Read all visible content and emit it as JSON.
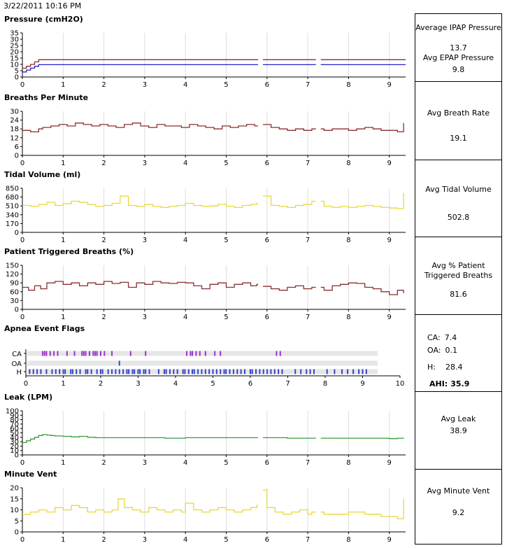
{
  "timestamp": "3/22/2011 10:16 PM",
  "chart_data": [
    {
      "type": "line",
      "title": "Pressure (cmH2O)",
      "xlabel": "",
      "ylabel": "",
      "xlim": [
        0,
        9.4
      ],
      "ylim": [
        0,
        35
      ],
      "xticks": [
        0,
        1,
        2,
        3,
        4,
        5,
        6,
        7,
        8,
        9
      ],
      "yticks": [
        0,
        5,
        10,
        15,
        20,
        25,
        30,
        35
      ],
      "gaps": [
        [
          5.78,
          5.9
        ],
        [
          7.2,
          7.32
        ]
      ],
      "series": [
        {
          "color": "#8b2e2e",
          "x": [
            0,
            0.1,
            0.2,
            0.3,
            0.4,
            9.4
          ],
          "y": [
            7,
            8.5,
            10,
            12,
            13.7,
            13.7
          ]
        },
        {
          "color": "#2222cc",
          "x": [
            0,
            0.1,
            0.2,
            0.3,
            0.4,
            9.4
          ],
          "y": [
            4,
            5.5,
            7,
            8.5,
            9.8,
            9.8
          ]
        }
      ]
    },
    {
      "type": "line",
      "title": "Breaths Per Minute",
      "xlabel": "",
      "ylabel": "",
      "xlim": [
        0,
        9.4
      ],
      "ylim": [
        0,
        30
      ],
      "xticks": [
        0,
        1,
        2,
        3,
        4,
        5,
        6,
        7,
        8,
        9
      ],
      "yticks": [
        0,
        6,
        12,
        18,
        24,
        30
      ],
      "gaps": [
        [
          5.78,
          5.9
        ],
        [
          7.2,
          7.32
        ]
      ],
      "series": [
        {
          "color": "#8b2e2e",
          "x": [
            0,
            0.2,
            0.4,
            0.5,
            0.7,
            0.9,
            1.1,
            1.3,
            1.5,
            1.7,
            1.9,
            2.1,
            2.3,
            2.5,
            2.7,
            2.9,
            3.1,
            3.3,
            3.5,
            3.7,
            3.9,
            4.1,
            4.3,
            4.5,
            4.7,
            4.9,
            5.1,
            5.3,
            5.5,
            5.7,
            5.9,
            6.1,
            6.3,
            6.5,
            6.7,
            6.9,
            7.1,
            7.4,
            7.6,
            7.8,
            8.0,
            8.2,
            8.4,
            8.6,
            8.8,
            9.0,
            9.2,
            9.35
          ],
          "y": [
            17,
            16,
            18,
            19,
            20,
            21,
            20,
            22,
            21,
            20,
            21,
            20,
            19,
            21,
            22,
            20,
            19,
            21,
            20,
            20,
            19,
            21,
            20,
            19,
            18,
            20,
            19,
            20,
            21,
            20,
            21,
            19,
            18,
            17,
            18,
            17,
            18,
            17,
            18,
            18,
            17,
            18,
            19,
            18,
            17,
            17,
            16,
            22
          ]
        }
      ]
    },
    {
      "type": "line",
      "title": "Tidal Volume (ml)",
      "xlabel": "",
      "ylabel": "",
      "xlim": [
        0,
        9.4
      ],
      "ylim": [
        0,
        850
      ],
      "xticks": [
        0,
        1,
        2,
        3,
        4,
        5,
        6,
        7,
        8,
        9
      ],
      "yticks": [
        0,
        170,
        340,
        510,
        680,
        850
      ],
      "gaps": [
        [
          5.78,
          5.9
        ],
        [
          7.2,
          7.32
        ]
      ],
      "series": [
        {
          "color": "#e8d83a",
          "x": [
            0,
            0.2,
            0.4,
            0.6,
            0.8,
            1.0,
            1.2,
            1.4,
            1.6,
            1.8,
            2.0,
            2.2,
            2.4,
            2.6,
            2.8,
            3.0,
            3.2,
            3.4,
            3.6,
            3.8,
            4.0,
            4.2,
            4.4,
            4.6,
            4.8,
            5.0,
            5.2,
            5.4,
            5.6,
            5.75,
            5.9,
            6.1,
            6.3,
            6.5,
            6.7,
            6.9,
            7.1,
            7.4,
            7.6,
            7.8,
            8.0,
            8.2,
            8.4,
            8.6,
            8.8,
            9.0,
            9.2,
            9.35
          ],
          "y": [
            520,
            500,
            540,
            580,
            520,
            550,
            600,
            580,
            540,
            500,
            520,
            560,
            700,
            520,
            500,
            540,
            500,
            480,
            500,
            520,
            560,
            520,
            500,
            510,
            540,
            500,
            480,
            520,
            540,
            560,
            700,
            520,
            500,
            480,
            520,
            540,
            600,
            500,
            480,
            500,
            480,
            500,
            520,
            500,
            480,
            470,
            460,
            760
          ]
        }
      ]
    },
    {
      "type": "line",
      "title": "Patient Triggered Breaths (%)",
      "xlabel": "",
      "ylabel": "",
      "xlim": [
        0,
        9.4
      ],
      "ylim": [
        0,
        150
      ],
      "xticks": [
        0,
        1,
        2,
        3,
        4,
        5,
        6,
        7,
        8,
        9
      ],
      "yticks": [
        0,
        30,
        60,
        90,
        120,
        150
      ],
      "gaps": [
        [
          5.78,
          5.9
        ],
        [
          7.2,
          7.32
        ]
      ],
      "series": [
        {
          "color": "#8b2e2e",
          "x": [
            0,
            0.15,
            0.3,
            0.45,
            0.6,
            0.8,
            1.0,
            1.2,
            1.4,
            1.6,
            1.8,
            2.0,
            2.2,
            2.4,
            2.6,
            2.8,
            3.0,
            3.2,
            3.4,
            3.6,
            3.8,
            4.0,
            4.2,
            4.4,
            4.6,
            4.8,
            5.0,
            5.2,
            5.4,
            5.6,
            5.75,
            5.9,
            6.1,
            6.3,
            6.5,
            6.7,
            6.9,
            7.1,
            7.4,
            7.6,
            7.8,
            8.0,
            8.2,
            8.4,
            8.6,
            8.8,
            9.0,
            9.2,
            9.35
          ],
          "y": [
            75,
            65,
            80,
            70,
            90,
            95,
            85,
            90,
            80,
            90,
            85,
            95,
            88,
            92,
            75,
            90,
            85,
            95,
            90,
            88,
            92,
            90,
            80,
            70,
            85,
            90,
            75,
            85,
            90,
            80,
            85,
            78,
            70,
            65,
            75,
            80,
            70,
            75,
            65,
            80,
            85,
            90,
            88,
            75,
            70,
            60,
            50,
            65,
            55
          ]
        }
      ]
    },
    {
      "type": "event",
      "title": "Apnea Event Flags",
      "xlim": [
        0,
        10
      ],
      "xticks": [
        0,
        1,
        2,
        3,
        4,
        5,
        6,
        7,
        8,
        9,
        10
      ],
      "rows": [
        {
          "label": "CA",
          "color": "#9933cc",
          "events": [
            0.45,
            0.5,
            0.55,
            0.65,
            0.75,
            0.85,
            1.1,
            1.3,
            1.5,
            1.55,
            1.6,
            1.7,
            1.8,
            1.85,
            1.9,
            2.0,
            2.1,
            2.3,
            2.8,
            3.2,
            4.3,
            4.4,
            4.45,
            4.55,
            4.65,
            4.8,
            5.05,
            5.2,
            6.7,
            6.8
          ]
        },
        {
          "label": "OA",
          "color": "#3344cc",
          "events": [
            2.5
          ]
        },
        {
          "label": "H",
          "color": "#3344cc",
          "events": [
            0.1,
            0.2,
            0.3,
            0.4,
            0.55,
            0.7,
            0.8,
            0.9,
            1.0,
            1.05,
            1.2,
            1.25,
            1.35,
            1.45,
            1.6,
            1.65,
            1.75,
            1.9,
            2.0,
            2.05,
            2.2,
            2.3,
            2.4,
            2.5,
            2.6,
            2.7,
            2.75,
            2.85,
            2.9,
            3.0,
            3.05,
            3.15,
            3.2,
            3.3,
            3.55,
            3.7,
            3.75,
            3.85,
            3.95,
            4.05,
            4.2,
            4.25,
            4.35,
            4.45,
            4.5,
            4.6,
            4.7,
            4.8,
            4.9,
            5.0,
            5.1,
            5.2,
            5.3,
            5.35,
            5.45,
            5.55,
            5.65,
            5.75,
            5.85,
            6.0,
            6.05,
            6.15,
            6.25,
            6.35,
            6.45,
            6.55,
            6.65,
            6.75,
            6.85,
            7.2,
            7.35,
            7.5,
            7.6,
            7.7,
            8.05,
            8.25,
            8.45,
            8.6,
            8.75,
            8.9,
            9.0,
            9.1
          ]
        }
      ]
    },
    {
      "type": "line",
      "title": "Leak (LPM)",
      "xlabel": "",
      "ylabel": "",
      "xlim": [
        0,
        9.4
      ],
      "ylim": [
        0,
        100
      ],
      "xticks": [
        0,
        1,
        2,
        3,
        4,
        5,
        6,
        7,
        8,
        9
      ],
      "yticks": [
        0,
        10,
        20,
        30,
        40,
        50,
        60,
        70,
        80,
        90,
        100
      ],
      "gaps": [
        [
          5.78,
          5.9
        ],
        [
          7.2,
          7.32
        ]
      ],
      "series": [
        {
          "color": "#3a9a3a",
          "x": [
            0,
            0.1,
            0.2,
            0.3,
            0.4,
            0.5,
            0.6,
            0.7,
            0.8,
            1.0,
            1.2,
            1.4,
            1.6,
            1.8,
            2.0,
            2.5,
            3.0,
            3.5,
            4.0,
            4.5,
            5.0,
            5.5,
            5.75,
            5.9,
            6.5,
            7.0,
            7.2,
            7.35,
            8.0,
            8.5,
            9.0,
            9.2,
            9.35
          ],
          "y": [
            28,
            32,
            36,
            40,
            44,
            46,
            45,
            44,
            43,
            42,
            41,
            42,
            40,
            39,
            39,
            39,
            39,
            38,
            39,
            39,
            39,
            39,
            39,
            39,
            38,
            38,
            38,
            38,
            38,
            38,
            37,
            38,
            37
          ]
        }
      ]
    },
    {
      "type": "line",
      "title": "Minute Vent",
      "xlabel": "",
      "ylabel": "",
      "xlim": [
        0,
        9.4
      ],
      "ylim": [
        0,
        20
      ],
      "xticks": [
        0,
        1,
        2,
        3,
        4,
        5,
        6,
        7,
        8,
        9
      ],
      "yticks": [
        0,
        5,
        10,
        15,
        20
      ],
      "gaps": [
        [
          5.78,
          5.9
        ],
        [
          7.2,
          7.32
        ]
      ],
      "series": [
        {
          "color": "#e8d83a",
          "x": [
            0,
            0.2,
            0.4,
            0.6,
            0.8,
            1.0,
            1.2,
            1.4,
            1.6,
            1.8,
            2.0,
            2.2,
            2.35,
            2.5,
            2.7,
            2.9,
            3.1,
            3.3,
            3.5,
            3.7,
            3.9,
            4.0,
            4.2,
            4.4,
            4.6,
            4.8,
            5.0,
            5.2,
            5.4,
            5.6,
            5.75,
            5.88,
            6.0,
            6.2,
            6.4,
            6.6,
            6.8,
            7.0,
            7.1,
            7.4,
            7.6,
            7.8,
            8.0,
            8.2,
            8.4,
            8.6,
            8.8,
            9.0,
            9.2,
            9.35
          ],
          "y": [
            8,
            9,
            10,
            9,
            11,
            10,
            12,
            11,
            9,
            10,
            9,
            10,
            15,
            11,
            10,
            9,
            11,
            10,
            9,
            10,
            9,
            13,
            10,
            9,
            10,
            11,
            10,
            9,
            10,
            11,
            12,
            19,
            11,
            9,
            8,
            9,
            10,
            8,
            9,
            8,
            8,
            8,
            9,
            9,
            8,
            8,
            7,
            7,
            6,
            15
          ]
        }
      ]
    }
  ],
  "summary": {
    "pressure": {
      "label1": "Average IPAP Pressure",
      "value1": "13.7",
      "label2": "Avg EPAP Pressure",
      "value2": "9.8"
    },
    "breath_rate": {
      "label": "Avg Breath Rate",
      "value": "19.1"
    },
    "tidal_volume": {
      "label": "Avg Tidal Volume",
      "value": "502.8"
    },
    "triggered": {
      "label1": "Avg % Patient",
      "label2": "Triggered Breaths",
      "value": "81.6"
    },
    "apnea": {
      "ca_label": "CA:",
      "ca_value": "7.4",
      "oa_label": "OA:",
      "oa_value": "0.1",
      "h_label": "H:",
      "h_value": "28.4",
      "ahi_label": "AHI:",
      "ahi_value": "35.9"
    },
    "leak": {
      "label": "Avg Leak",
      "value": "38.9"
    },
    "minute_vent": {
      "label": "Avg Minute Vent",
      "value": "9.2"
    }
  }
}
